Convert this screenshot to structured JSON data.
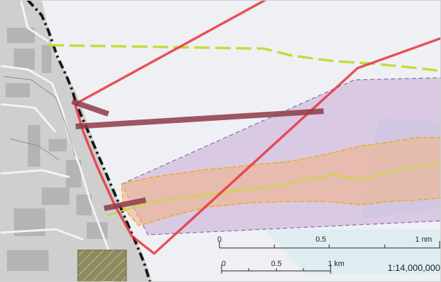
{
  "map": {
    "colors": {
      "water": "#eef0f4",
      "land": "#c8c8c8",
      "route_red": "#e8343c",
      "dashed_green": "#c9d93a",
      "purple_zone": "#c9a9d6",
      "orange_corridor": "#f0b48c",
      "maroon_bars": "#8e3a46",
      "hatch_zone": "#8a8a5a"
    }
  },
  "scale_bar": {
    "nm_ticks": [
      "0",
      "0.5",
      "1 nm"
    ],
    "km_ticks": [
      "0",
      "0.5",
      "1 km"
    ],
    "ratio": "1:14,000,000"
  }
}
